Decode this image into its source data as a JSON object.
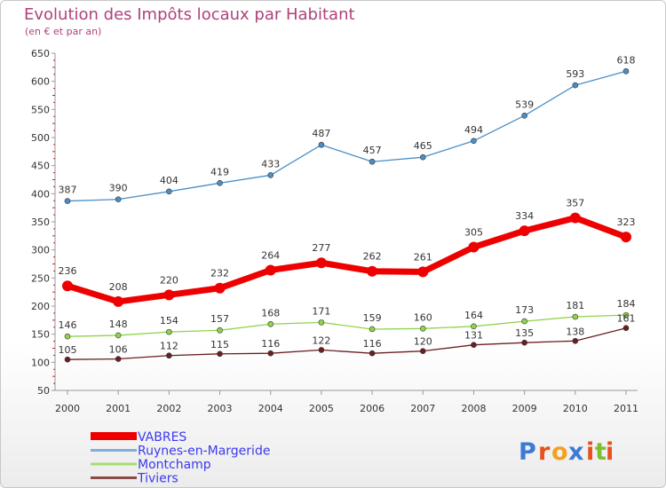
{
  "chart_data": {
    "type": "line",
    "title": "Evolution des Impôts locaux par Habitant",
    "subtitle": "(en € et par an)",
    "xlabel": "",
    "ylabel": "",
    "x": [
      "2000",
      "2001",
      "2002",
      "2003",
      "2004",
      "2005",
      "2006",
      "2007",
      "2008",
      "2009",
      "2010",
      "2011"
    ],
    "ylim": [
      50,
      650
    ],
    "yticks": [
      "650",
      "600",
      "550",
      "500",
      "450",
      "400",
      "350",
      "300",
      "250",
      "200",
      "150",
      "100",
      "50"
    ],
    "grid": false,
    "legend_position": "bottom-left",
    "series": [
      {
        "name": "Ruynes-en-Margeride",
        "color": "#4b8fc9",
        "values": [
          387,
          390,
          404,
          419,
          433,
          487,
          457,
          465,
          494,
          539,
          593,
          618
        ]
      },
      {
        "name": "VABRES",
        "color": "#ee0000",
        "values": [
          236,
          208,
          220,
          232,
          264,
          277,
          262,
          261,
          305,
          334,
          357,
          323
        ]
      },
      {
        "name": "Montchamp",
        "color": "#8fd44a",
        "values": [
          146,
          148,
          154,
          157,
          168,
          171,
          159,
          160,
          164,
          173,
          181,
          184
        ]
      },
      {
        "name": "Tiviers",
        "color": "#6b1f1f",
        "values": [
          105,
          106,
          112,
          115,
          116,
          122,
          116,
          120,
          131,
          135,
          138,
          161
        ]
      }
    ],
    "legend": [
      {
        "name": "VABRES",
        "color": "#ee0000",
        "text_color": "#3a3af0"
      },
      {
        "name": "Ruynes-en-Margeride",
        "color": "#7fb0d9",
        "text_color": "#3a3af0"
      },
      {
        "name": "Montchamp",
        "color": "#a8dd72",
        "text_color": "#3a3af0"
      },
      {
        "name": "Tiviers",
        "color": "#8b4a4a",
        "text_color": "#3a3af0"
      }
    ]
  },
  "logo": {
    "letters": [
      "P",
      "r",
      "o",
      "x",
      "i",
      "t",
      "i"
    ],
    "colors": [
      "#3a7bd5",
      "#e8501f",
      "#f2a21c",
      "#3a7bd5",
      "#e8501f",
      "#7cbf2f",
      "#e8501f"
    ]
  }
}
